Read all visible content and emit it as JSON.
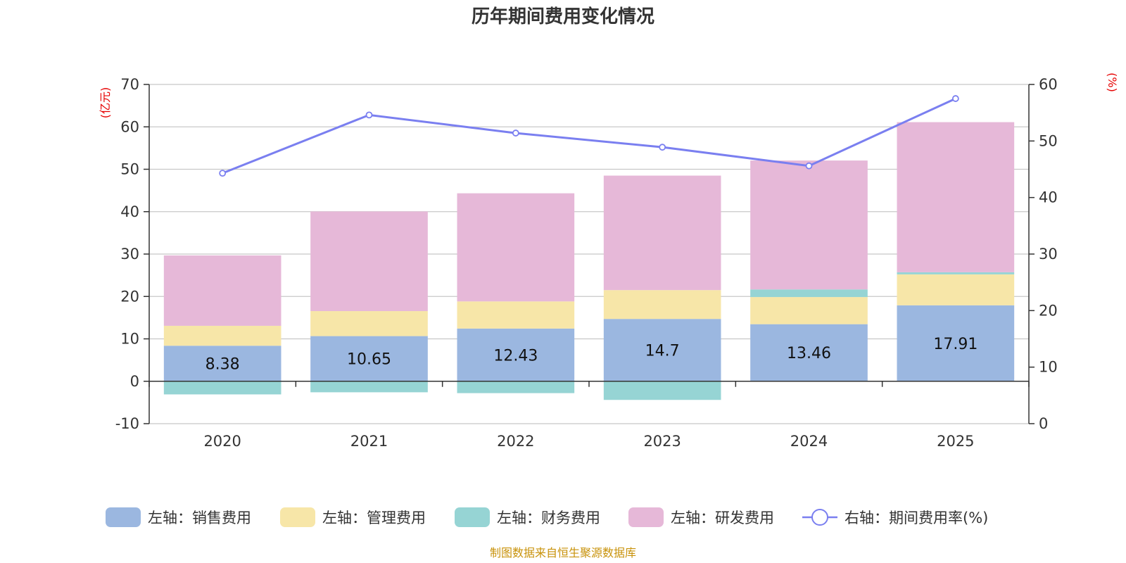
{
  "chart_data": {
    "type": "bar",
    "title": "历年期间费用变化情况",
    "categories": [
      "2020",
      "2021",
      "2022",
      "2023",
      "2024",
      "2025"
    ],
    "left_axis": {
      "unit": "(亿元)",
      "ylim": [
        -10,
        70
      ],
      "ticks": [
        -10,
        0,
        10,
        20,
        30,
        40,
        50,
        60,
        70
      ]
    },
    "right_axis": {
      "unit": "(%)",
      "ylim": [
        0,
        60
      ],
      "ticks": [
        0,
        10,
        20,
        30,
        40,
        50,
        60
      ]
    },
    "series": [
      {
        "name": "左轴：销售费用",
        "type": "bar",
        "axis": "left",
        "color": "#9bb7e0",
        "values": [
          8.38,
          10.65,
          12.43,
          14.7,
          13.46,
          17.91
        ]
      },
      {
        "name": "左轴：管理费用",
        "type": "bar",
        "axis": "left",
        "color": "#f7e6a8",
        "values": [
          4.7,
          5.9,
          6.4,
          6.8,
          6.4,
          7.3
        ]
      },
      {
        "name": "左轴：财务费用",
        "type": "bar",
        "axis": "left",
        "color": "#96d4d4",
        "values": [
          -3.1,
          -2.6,
          -2.8,
          -4.4,
          1.8,
          0.5
        ]
      },
      {
        "name": "左轴：研发费用",
        "type": "bar",
        "axis": "left",
        "color": "#e6b8d8",
        "values": [
          16.6,
          23.5,
          25.5,
          27.0,
          30.4,
          35.4
        ]
      },
      {
        "name": "右轴：期间费用率(%)",
        "type": "line",
        "axis": "right",
        "color": "#7a7ff0",
        "values": [
          44.3,
          54.6,
          51.4,
          48.9,
          45.6,
          57.5
        ]
      }
    ],
    "data_labels": [
      "8.38",
      "10.65",
      "12.43",
      "14.7",
      "13.46",
      "17.91"
    ],
    "legend_position": "bottom",
    "grid": true
  },
  "source_note": "制图数据来自恒生聚源数据库"
}
